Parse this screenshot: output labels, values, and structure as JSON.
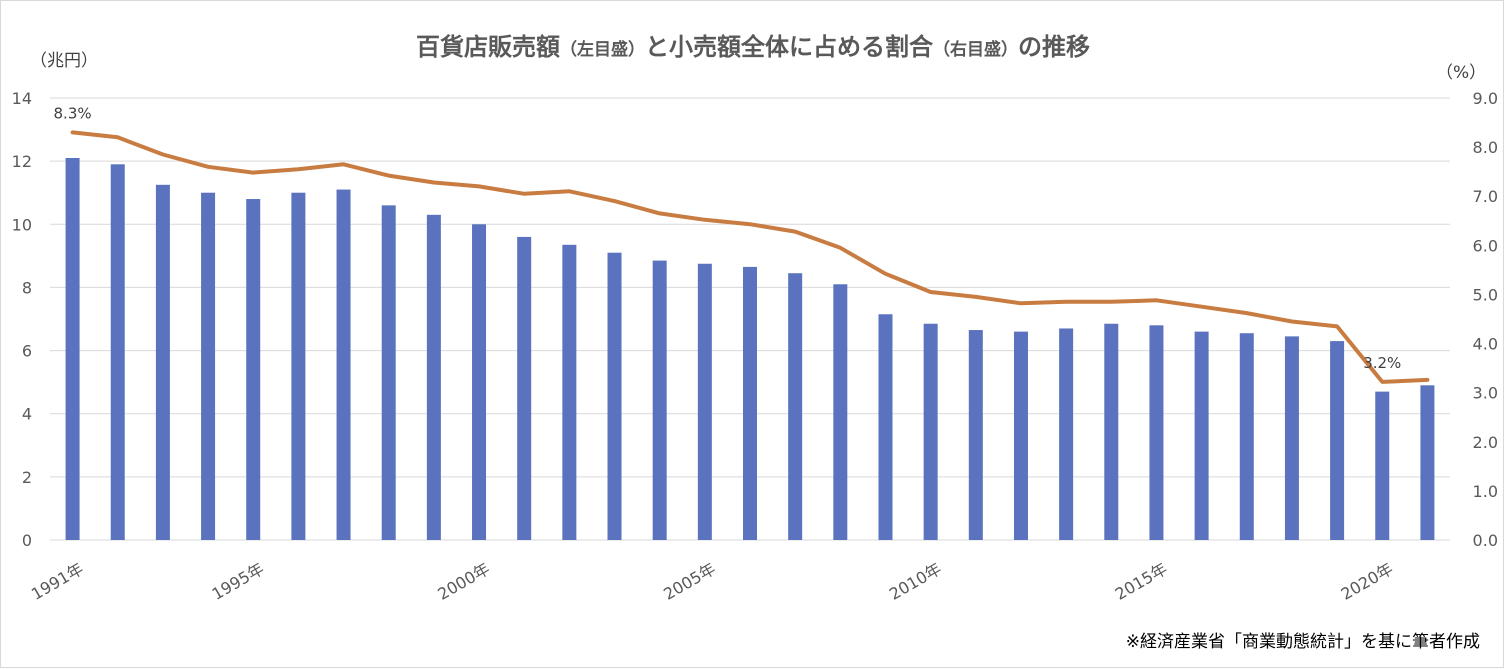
{
  "chart_data": {
    "type": "bar",
    "title_parts": [
      {
        "text": "百貨店販売額",
        "small": false
      },
      {
        "text": "（左目盛）",
        "small": true
      },
      {
        "text": "と小売額全体に占める割合",
        "small": false
      },
      {
        "text": "（右目盛）",
        "small": true
      },
      {
        "text": "の推移",
        "small": false
      }
    ],
    "left_unit": "（兆円）",
    "right_unit": "（%）",
    "source": "※経済産業省「商業動態統計」を基に筆者作成",
    "x": [
      1991,
      1992,
      1993,
      1994,
      1995,
      1996,
      1997,
      1998,
      1999,
      2000,
      2001,
      2002,
      2003,
      2004,
      2005,
      2006,
      2007,
      2008,
      2009,
      2010,
      2011,
      2012,
      2013,
      2014,
      2015,
      2016,
      2017,
      2018,
      2019,
      2020,
      2021
    ],
    "x_tick_labels": [
      {
        "year": 1991,
        "label": "1991年"
      },
      {
        "year": 1995,
        "label": "1995年"
      },
      {
        "year": 2000,
        "label": "2000年"
      },
      {
        "year": 2005,
        "label": "2005年"
      },
      {
        "year": 2010,
        "label": "2010年"
      },
      {
        "year": 2015,
        "label": "2015年"
      },
      {
        "year": 2020,
        "label": "2020年"
      }
    ],
    "series": [
      {
        "kind": "bar",
        "axis": "left",
        "color": "#5b73be",
        "values": [
          12.1,
          11.9,
          11.25,
          11.0,
          10.8,
          11.0,
          11.1,
          10.6,
          10.3,
          10.0,
          9.6,
          9.35,
          9.1,
          8.85,
          8.75,
          8.65,
          8.45,
          8.1,
          7.15,
          6.85,
          6.65,
          6.6,
          6.7,
          6.85,
          6.8,
          6.6,
          6.55,
          6.45,
          6.3,
          4.7,
          4.9
        ]
      },
      {
        "kind": "line",
        "axis": "right",
        "color": "#c97c41",
        "values": [
          8.3,
          8.2,
          7.85,
          7.6,
          7.48,
          7.55,
          7.65,
          7.42,
          7.28,
          7.2,
          7.05,
          7.1,
          6.9,
          6.65,
          6.52,
          6.43,
          6.28,
          5.95,
          5.42,
          5.05,
          4.95,
          4.82,
          4.85,
          4.85,
          4.88,
          4.75,
          4.62,
          4.45,
          4.35,
          3.22,
          3.26
        ]
      }
    ],
    "point_labels": [
      {
        "index": 0,
        "text": "8.3%"
      },
      {
        "index": 29,
        "text": "3.2%"
      }
    ],
    "ylim_left": [
      0,
      14
    ],
    "left_ticks": [
      "0",
      "2",
      "4",
      "6",
      "8",
      "10",
      "12",
      "14"
    ],
    "ylim_right": [
      0,
      9
    ],
    "right_ticks": [
      "0.0",
      "1.0",
      "2.0",
      "3.0",
      "4.0",
      "5.0",
      "6.0",
      "7.0",
      "8.0",
      "9.0"
    ],
    "gridlines": true,
    "gridline_color": "#d9d9d9"
  }
}
